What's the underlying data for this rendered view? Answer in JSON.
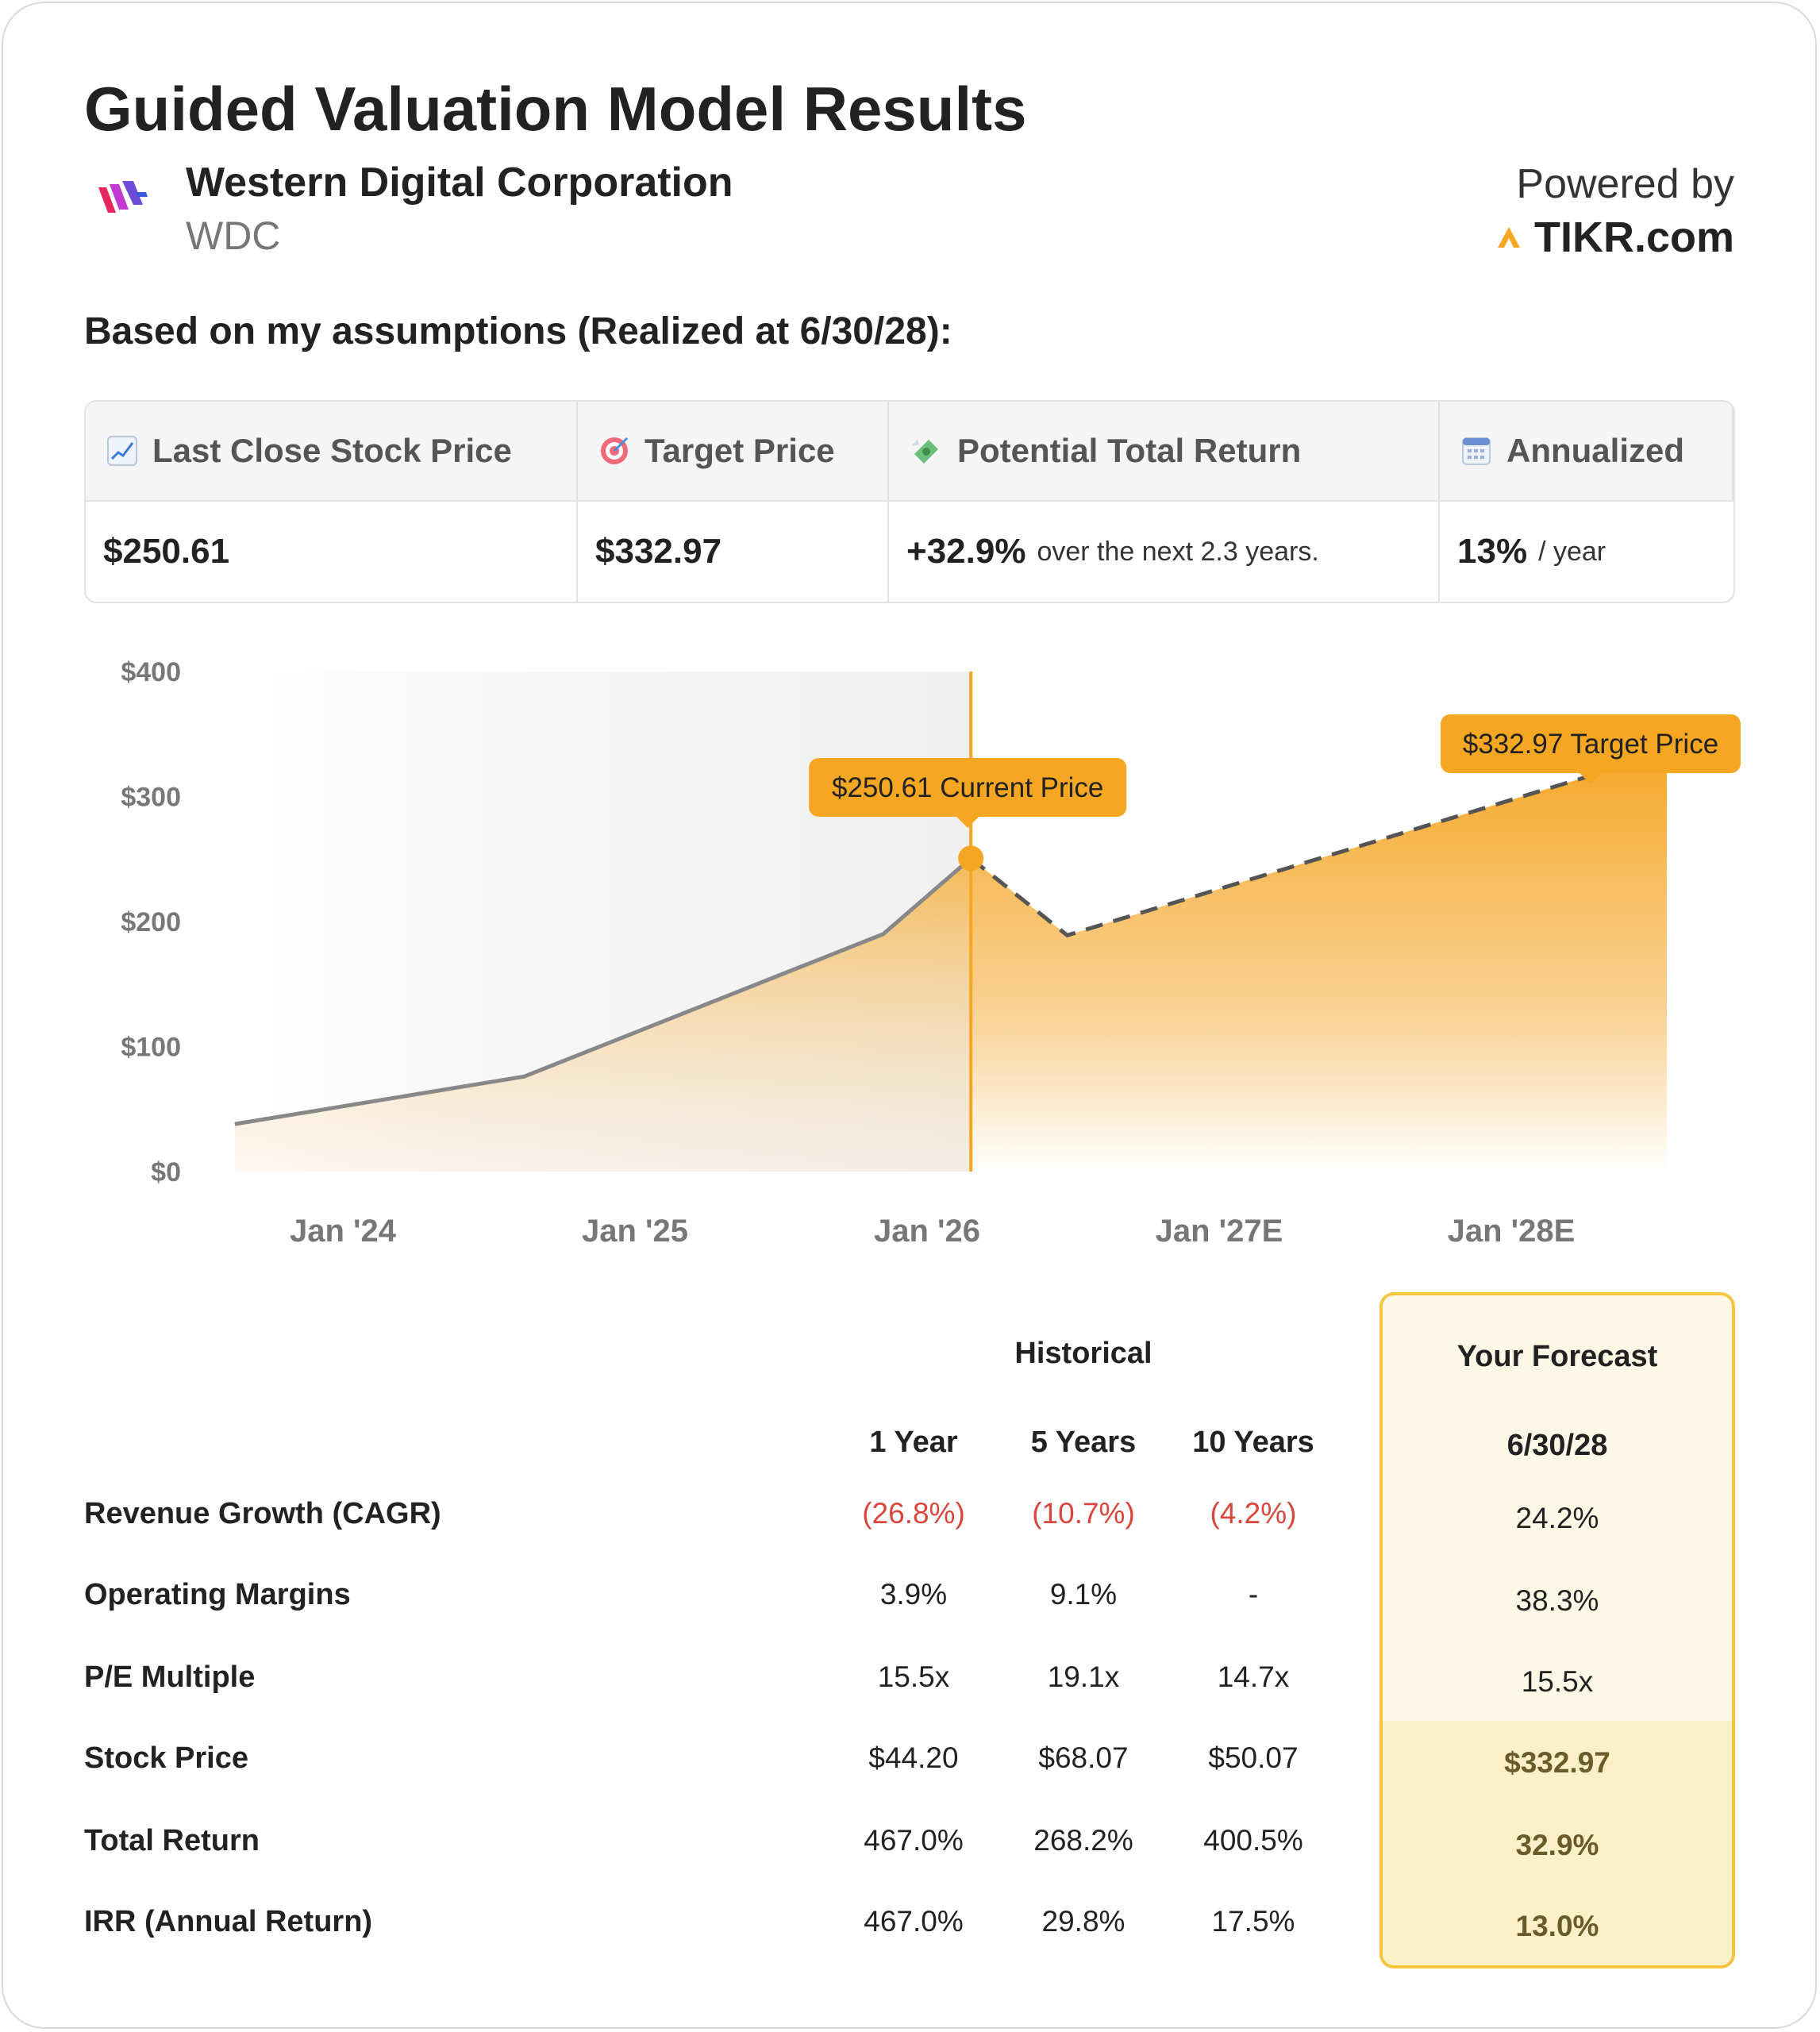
{
  "header": {
    "title": "Guided Valuation Model Results",
    "company": "Western Digital Corporation",
    "ticker": "WDC",
    "powered_by": "Powered by",
    "brand": "TIKR.com",
    "subtitle": "Based on my assumptions (Realized at 6/30/28):"
  },
  "summary": {
    "headers": [
      {
        "icon": "chart-increasing-icon",
        "label": "Last Close Stock Price"
      },
      {
        "icon": "target-icon",
        "label": "Target Price"
      },
      {
        "icon": "money-with-wings-icon",
        "label": "Potential Total Return"
      },
      {
        "icon": "calendar-icon",
        "label": "Annualized"
      }
    ],
    "last_close": "$250.61",
    "target": "$332.97",
    "return_value": "+32.9%",
    "return_note": "over the next 2.3 years.",
    "annualized_value": "13%",
    "annualized_note": "/ year"
  },
  "chart_data": {
    "type": "area",
    "y_ticks": [
      "$400",
      "$300",
      "$200",
      "$100",
      "$0"
    ],
    "ylim": [
      0,
      400
    ],
    "x_ticks": [
      {
        "label": "Jan '24",
        "t": 2024.0
      },
      {
        "label": "Jan '25",
        "t": 2025.0
      },
      {
        "label": "Jan '26",
        "t": 2026.0
      },
      {
        "label": "Jan '27E",
        "t": 2027.0
      },
      {
        "label": "Jan '28E",
        "t": 2028.0
      }
    ],
    "historical": [
      {
        "t": 2023.63,
        "y": 38
      },
      {
        "t": 2024.62,
        "y": 76
      },
      {
        "t": 2025.85,
        "y": 190
      },
      {
        "t": 2026.15,
        "y": 250.61
      }
    ],
    "forecast": [
      {
        "t": 2026.15,
        "y": 250.61
      },
      {
        "t": 2026.48,
        "y": 189
      },
      {
        "t": 2028.5,
        "y": 332.97
      }
    ],
    "current_label": "$250.61 Current Price",
    "target_label": "$332.97 Target Price",
    "colors": {
      "accent": "#f5a623",
      "line": "#888888",
      "dashed": "#555555"
    }
  },
  "table": {
    "historical_label": "Historical",
    "columns": [
      "1 Year",
      "5 Years",
      "10 Years"
    ],
    "forecast_label": "Your Forecast",
    "forecast_date": "6/30/28",
    "rows": [
      {
        "label": "Revenue Growth (CAGR)",
        "values": [
          "(26.8%)",
          "(10.7%)",
          "(4.2%)"
        ],
        "negative": true,
        "forecast": "24.2%"
      },
      {
        "label": "Operating Margins",
        "values": [
          "3.9%",
          "9.1%",
          "-"
        ],
        "negative": false,
        "forecast": "38.3%"
      },
      {
        "label": "P/E Multiple",
        "values": [
          "15.5x",
          "19.1x",
          "14.7x"
        ],
        "negative": false,
        "forecast": "15.5x"
      },
      {
        "label": "Stock Price",
        "values": [
          "$44.20",
          "$68.07",
          "$50.07"
        ],
        "negative": false,
        "forecast": "$332.97"
      },
      {
        "label": "Total Return",
        "values": [
          "467.0%",
          "268.2%",
          "400.5%"
        ],
        "negative": false,
        "forecast": "32.9%"
      },
      {
        "label": "IRR (Annual Return)",
        "values": [
          "467.0%",
          "29.8%",
          "17.5%"
        ],
        "negative": false,
        "forecast": "13.0%"
      }
    ]
  }
}
